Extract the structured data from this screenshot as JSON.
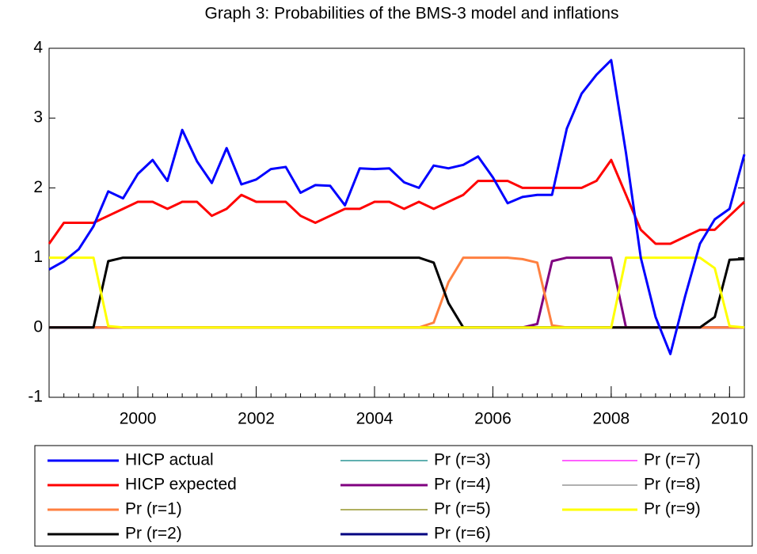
{
  "chart_data": {
    "type": "line",
    "title": "Graph 3: Probabilities of the BMS-3 model and inflations",
    "x": [
      1998.5,
      1998.75,
      1999,
      1999.25,
      1999.5,
      1999.75,
      2000,
      2000.25,
      2000.5,
      2000.75,
      2001,
      2001.25,
      2001.5,
      2001.75,
      2002,
      2002.25,
      2002.5,
      2002.75,
      2003,
      2003.25,
      2003.5,
      2003.75,
      2004,
      2004.25,
      2004.5,
      2004.75,
      2005,
      2005.25,
      2005.5,
      2005.75,
      2006,
      2006.25,
      2006.5,
      2006.75,
      2007,
      2007.25,
      2007.5,
      2007.75,
      2008,
      2008.25,
      2008.5,
      2008.75,
      2009,
      2009.25,
      2009.5,
      2009.75,
      2010,
      2010.25
    ],
    "xlim": [
      1998.5,
      2010.25
    ],
    "xticks": [
      2000,
      2002,
      2004,
      2006,
      2008,
      2010
    ],
    "ylim": [
      -1,
      4
    ],
    "yticks": [
      -1,
      0,
      1,
      2,
      3,
      4
    ],
    "series": [
      {
        "name": "HICP actual",
        "color": "#0000ff",
        "width": 3,
        "values": [
          0.83,
          0.95,
          1.12,
          1.45,
          1.95,
          1.85,
          2.2,
          2.4,
          2.1,
          2.83,
          2.38,
          2.07,
          2.57,
          2.05,
          2.12,
          2.27,
          2.3,
          1.93,
          2.04,
          2.03,
          1.75,
          2.28,
          2.27,
          2.28,
          2.08,
          2.0,
          2.32,
          2.28,
          2.33,
          2.45,
          2.15,
          1.78,
          1.87,
          1.9,
          1.9,
          2.85,
          3.35,
          3.62,
          3.83,
          2.5,
          1.0,
          0.15,
          -0.38,
          0.45,
          1.2,
          1.55,
          1.7,
          2.48
        ]
      },
      {
        "name": "HICP expected",
        "color": "#ff0000",
        "width": 3,
        "values": [
          1.2,
          1.5,
          1.5,
          1.5,
          1.6,
          1.7,
          1.8,
          1.8,
          1.7,
          1.8,
          1.8,
          1.6,
          1.7,
          1.9,
          1.8,
          1.8,
          1.8,
          1.6,
          1.5,
          1.6,
          1.7,
          1.7,
          1.8,
          1.8,
          1.7,
          1.8,
          1.7,
          1.8,
          1.9,
          2.1,
          2.1,
          2.1,
          2.0,
          2.0,
          2.0,
          2.0,
          2.0,
          2.1,
          2.4,
          1.9,
          1.4,
          1.2,
          1.2,
          1.3,
          1.4,
          1.4,
          1.6,
          1.8
        ]
      },
      {
        "name": "Pr (r=1)",
        "color": "#ff8040",
        "width": 3,
        "values": [
          0,
          0,
          0,
          0,
          0,
          0,
          0,
          0,
          0,
          0,
          0,
          0,
          0,
          0,
          0,
          0,
          0,
          0,
          0,
          0,
          0,
          0,
          0,
          0,
          0,
          0,
          0.07,
          0.65,
          1,
          1,
          1,
          1,
          0.98,
          0.93,
          0.03,
          0,
          0,
          0,
          0,
          0,
          0,
          0,
          0,
          0,
          0,
          0,
          0,
          0
        ]
      },
      {
        "name": "Pr (r=2)",
        "color": "#000000",
        "width": 3,
        "values": [
          0,
          0,
          0,
          0,
          0.95,
          1,
          1,
          1,
          1,
          1,
          1,
          1,
          1,
          1,
          1,
          1,
          1,
          1,
          1,
          1,
          1,
          1,
          1,
          1,
          1,
          1,
          0.93,
          0.35,
          0,
          0,
          0,
          0,
          0,
          0,
          0,
          0,
          0,
          0,
          0,
          0,
          0,
          0,
          0,
          0,
          0,
          0.15,
          0.97,
          0.98
        ]
      },
      {
        "name": "Pr (r=3)",
        "color": "#008080",
        "width": 1.2,
        "values": [
          0,
          0,
          0,
          0,
          0,
          0,
          0,
          0,
          0,
          0,
          0,
          0,
          0,
          0,
          0,
          0,
          0,
          0,
          0,
          0,
          0,
          0,
          0,
          0,
          0,
          0,
          0,
          0,
          0,
          0,
          0,
          0,
          0,
          0,
          0,
          0,
          0,
          0,
          0,
          0,
          0,
          0,
          0,
          0,
          0,
          0,
          0,
          0
        ]
      },
      {
        "name": "Pr (r=4)",
        "color": "#800080",
        "width": 3,
        "values": [
          0,
          0,
          0,
          0,
          0,
          0,
          0,
          0,
          0,
          0,
          0,
          0,
          0,
          0,
          0,
          0,
          0,
          0,
          0,
          0,
          0,
          0,
          0,
          0,
          0,
          0,
          0,
          0,
          0,
          0,
          0,
          0,
          0,
          0.05,
          0.95,
          1,
          1,
          1,
          1,
          0,
          0,
          0,
          0,
          0,
          0,
          0,
          0,
          0
        ]
      },
      {
        "name": "Pr (r=5)",
        "color": "#808000",
        "width": 1.2,
        "values": [
          0,
          0,
          0,
          0,
          0,
          0,
          0,
          0,
          0,
          0,
          0,
          0,
          0,
          0,
          0,
          0,
          0,
          0,
          0,
          0,
          0,
          0,
          0,
          0,
          0,
          0,
          0,
          0,
          0,
          0,
          0,
          0,
          0,
          0,
          0,
          0,
          0,
          0,
          0,
          0,
          0,
          0,
          0,
          0,
          0,
          0,
          0,
          0
        ]
      },
      {
        "name": "Pr (r=6)",
        "color": "#000080",
        "width": 3,
        "values": [
          0,
          0,
          0,
          0,
          0,
          0,
          0,
          0,
          0,
          0,
          0,
          0,
          0,
          0,
          0,
          0,
          0,
          0,
          0,
          0,
          0,
          0,
          0,
          0,
          0,
          0,
          0,
          0,
          0,
          0,
          0,
          0,
          0,
          0,
          0,
          0,
          0,
          0,
          0,
          0,
          0,
          0,
          0,
          0,
          0,
          0,
          0,
          0
        ]
      },
      {
        "name": "Pr (r=7)",
        "color": "#ff00ff",
        "width": 1.2,
        "values": [
          0,
          0,
          0,
          0,
          0,
          0,
          0,
          0,
          0,
          0,
          0,
          0,
          0,
          0,
          0,
          0,
          0,
          0,
          0,
          0,
          0,
          0,
          0,
          0,
          0,
          0,
          0,
          0,
          0,
          0,
          0,
          0,
          0,
          0,
          0,
          0,
          0,
          0,
          0,
          0,
          0,
          0,
          0,
          0,
          0,
          0,
          0,
          0
        ]
      },
      {
        "name": "Pr (r=8)",
        "color": "#808080",
        "width": 1.2,
        "values": [
          0,
          0,
          0,
          0,
          0,
          0,
          0,
          0,
          0,
          0,
          0,
          0,
          0,
          0,
          0,
          0,
          0,
          0,
          0,
          0,
          0,
          0,
          0,
          0,
          0,
          0,
          0,
          0,
          0,
          0,
          0,
          0,
          0,
          0,
          0,
          0,
          0,
          0,
          0,
          0,
          0,
          0,
          0,
          0,
          0,
          0,
          0,
          0
        ]
      },
      {
        "name": "Pr (r=9)",
        "color": "#ffff00",
        "width": 3,
        "values": [
          1,
          1,
          1,
          1,
          0.02,
          0,
          0,
          0,
          0,
          0,
          0,
          0,
          0,
          0,
          0,
          0,
          0,
          0,
          0,
          0,
          0,
          0,
          0,
          0,
          0,
          0,
          0,
          0,
          0,
          0,
          0,
          0,
          0,
          0,
          0,
          0,
          0,
          0,
          0,
          1,
          1,
          1,
          1,
          1,
          1,
          0.85,
          0.02,
          0
        ]
      }
    ]
  }
}
